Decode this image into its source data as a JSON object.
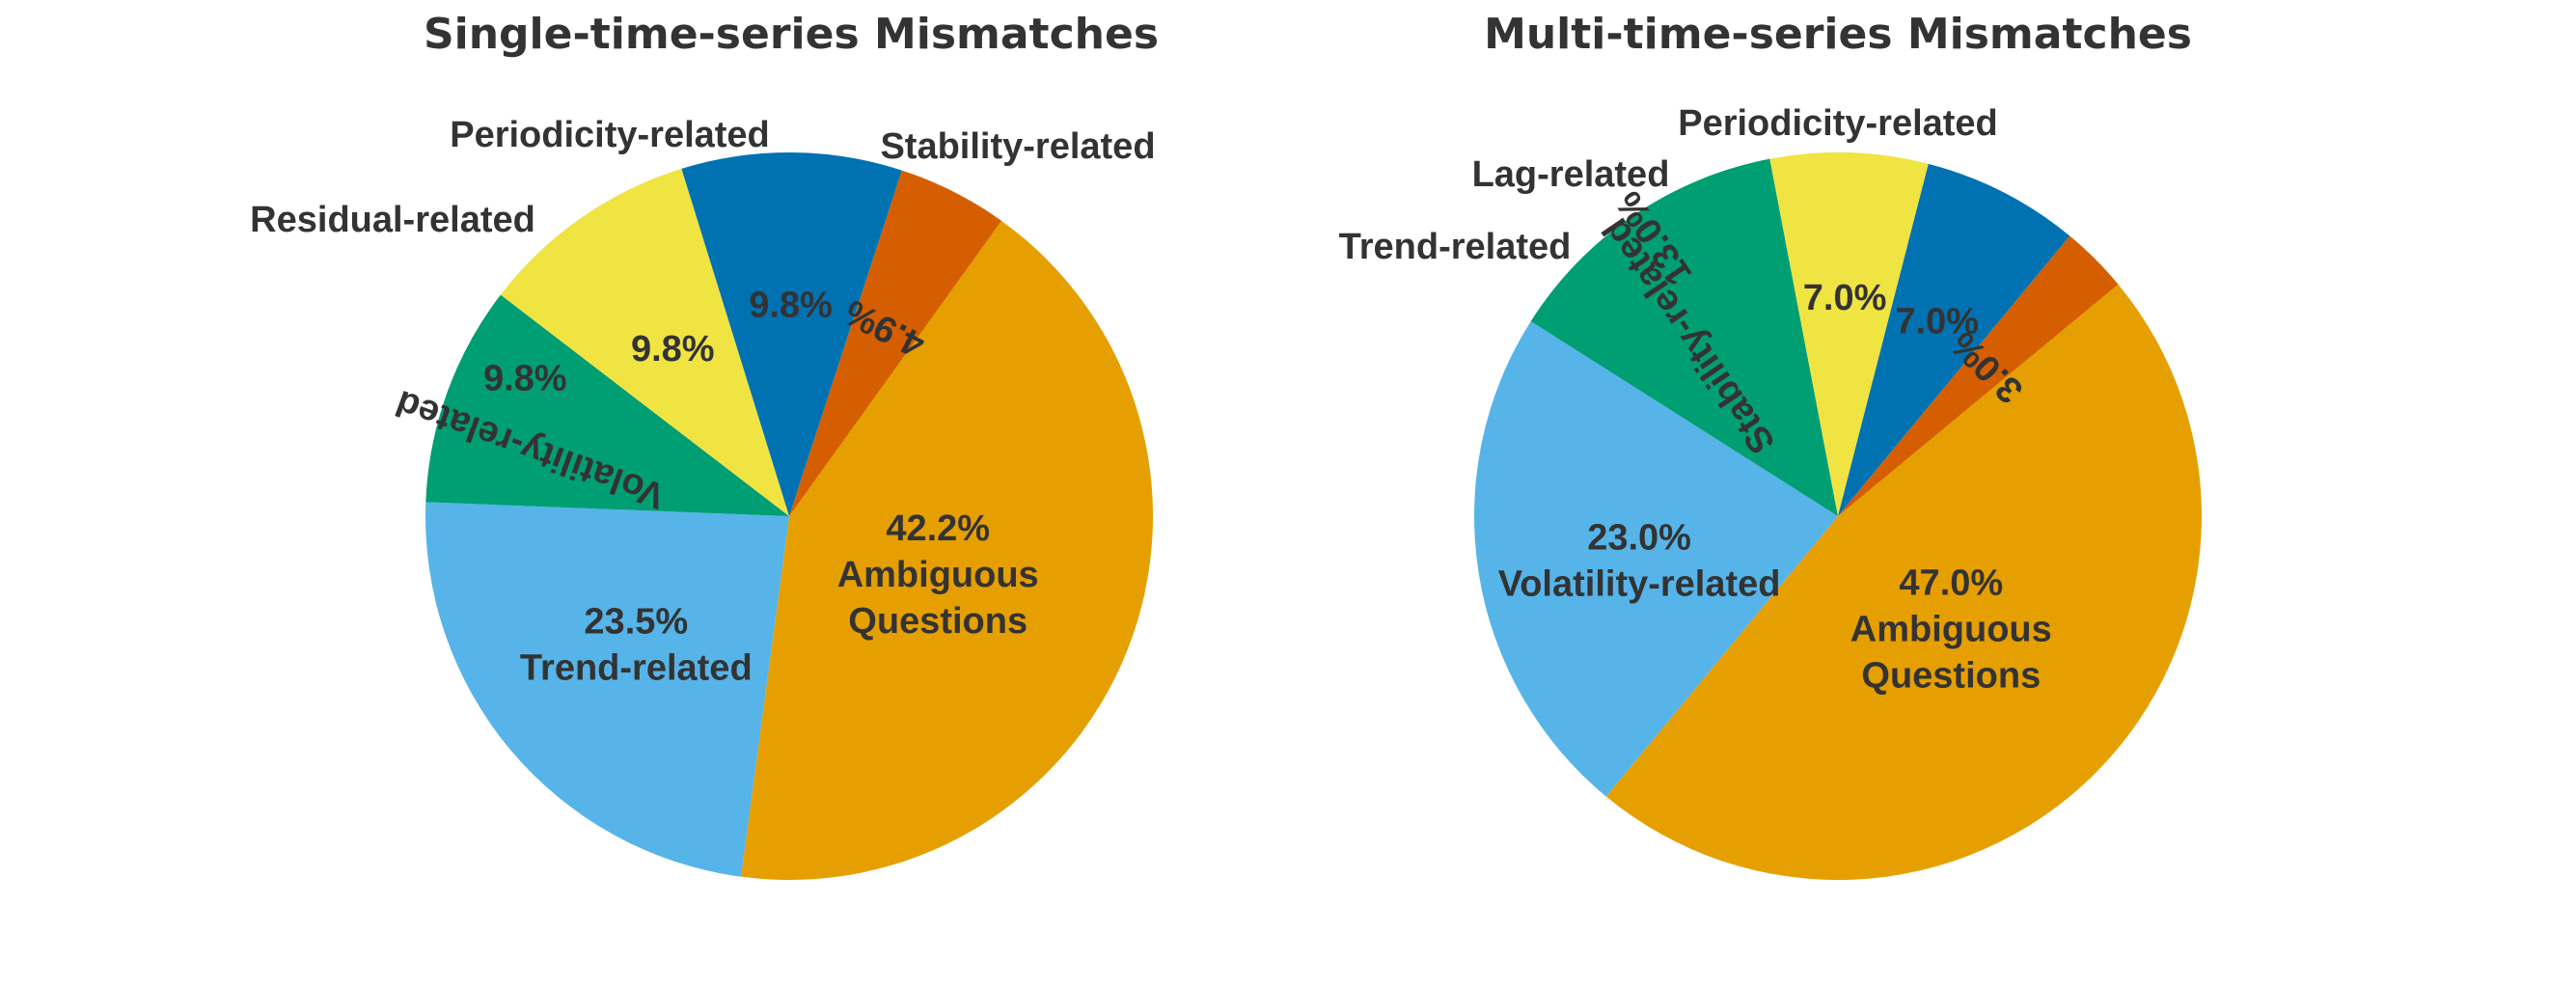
{
  "chart_data": [
    {
      "type": "pie",
      "title": "Single-time-series Mismatches",
      "slices": [
        {
          "label": "Ambiguous Questions",
          "lines": [
            "Ambiguous",
            "Questions"
          ],
          "value": 42.2,
          "pct_text": "42.2%",
          "color": "#E69F00"
        },
        {
          "label": "Trend-related",
          "lines": [
            "Trend-related"
          ],
          "value": 23.5,
          "pct_text": "23.5%",
          "color": "#56B4E9"
        },
        {
          "label": "Volatility-related",
          "lines": [
            "Volatility-related"
          ],
          "value": 9.8,
          "pct_text": "9.8%",
          "color": "#009E73"
        },
        {
          "label": "Stability-related",
          "lines": [
            "Stability-related"
          ],
          "value": 9.8,
          "pct_text": "9.8%",
          "color": "#F0E442"
        },
        {
          "label": "Periodicity-related",
          "lines": [
            "Periodicity-related"
          ],
          "value": 9.8,
          "pct_text": "9.8%",
          "color": "#0072B2"
        },
        {
          "label": "Residual-related",
          "lines": [
            "Residual-related"
          ],
          "value": 4.9,
          "pct_text": "4.9%",
          "color": "#D55E00"
        }
      ]
    },
    {
      "type": "pie",
      "title": "Multi-time-series Mismatches",
      "slices": [
        {
          "label": "Ambiguous Questions",
          "lines": [
            "Ambiguous",
            "Questions"
          ],
          "value": 47.0,
          "pct_text": "47.0%",
          "color": "#E69F00"
        },
        {
          "label": "Volatility-related",
          "lines": [
            "Volatility-related"
          ],
          "value": 23.0,
          "pct_text": "23.0%",
          "color": "#56B4E9"
        },
        {
          "label": "Stability-related",
          "lines": [
            "Stability-related"
          ],
          "value": 13.0,
          "pct_text": "13.0%",
          "color": "#009E73"
        },
        {
          "label": "Periodicity-related",
          "lines": [
            "Periodicity-related"
          ],
          "value": 7.0,
          "pct_text": "7.0%",
          "color": "#F0E442"
        },
        {
          "label": "Lag-related",
          "lines": [
            "Lag-related"
          ],
          "value": 7.0,
          "pct_text": "7.0%",
          "color": "#0072B2"
        },
        {
          "label": "Trend-related",
          "lines": [
            "Trend-related"
          ],
          "value": 3.0,
          "pct_text": "3.0%",
          "color": "#D55E00"
        }
      ]
    }
  ]
}
